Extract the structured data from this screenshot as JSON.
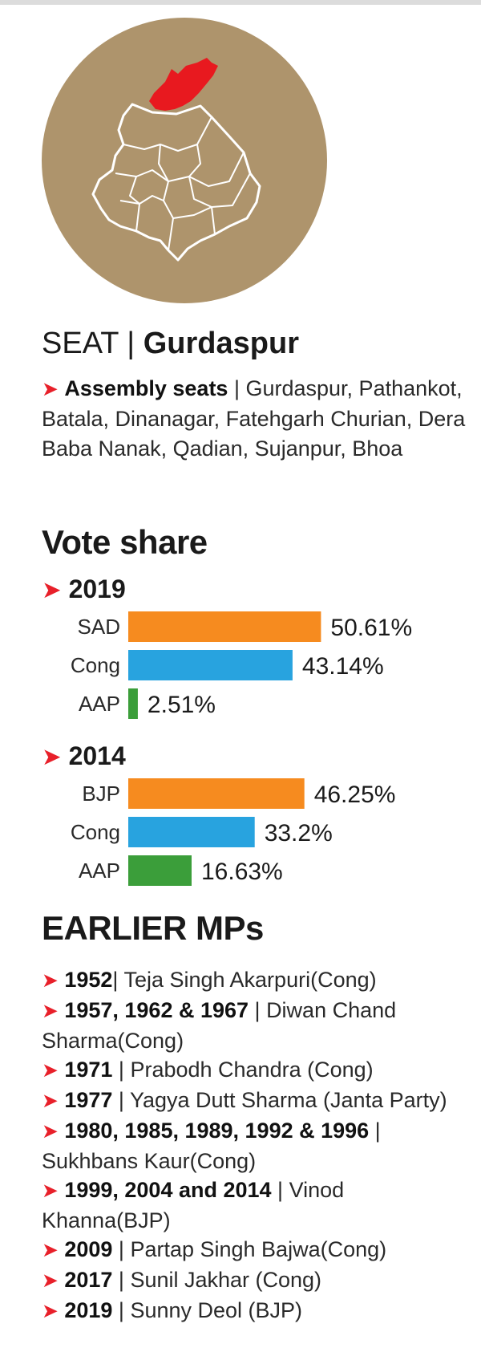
{
  "map": {
    "fill_color": "#ae946c",
    "highlight_color": "#e8191f",
    "outline_color": "#ffffff"
  },
  "seat": {
    "prefix": "SEAT | ",
    "name": "Gurdaspur"
  },
  "assembly": {
    "label": "Assembly seats",
    "separator": " | ",
    "list": "Gurdaspur, Pathankot, Batala, Dinanagar, Fatehgarh Churian, Dera Baba Nanak, Qadian, Sujanpur, Bhoa"
  },
  "vote_share_title": "Vote share",
  "chart_data": [
    {
      "type": "bar",
      "orientation": "horizontal",
      "title": "2019",
      "categories": [
        "SAD",
        "Cong",
        "AAP"
      ],
      "values": [
        50.61,
        43.14,
        2.51
      ],
      "labels": [
        "50.61%",
        "43.14%",
        "2.51%"
      ],
      "colors": [
        "#f68b1f",
        "#28a3df",
        "#3b9e3a"
      ],
      "grid": false
    },
    {
      "type": "bar",
      "orientation": "horizontal",
      "title": "2014",
      "categories": [
        "BJP",
        "Cong",
        "AAP"
      ],
      "values": [
        46.25,
        33.2,
        16.63
      ],
      "labels": [
        "46.25%",
        "33.2%",
        "16.63%"
      ],
      "colors": [
        "#f68b1f",
        "#28a3df",
        "#3b9e3a"
      ],
      "grid": false
    }
  ],
  "earlier_mps_title": "EARLIER MPs",
  "earlier_mps": [
    {
      "years": "1952",
      "sep": "| ",
      "text": "Teja Singh Akarpuri(Cong)"
    },
    {
      "years": "1957, 1962 & 1967",
      "sep": " | ",
      "text": "Diwan Chand Sharma(Cong)"
    },
    {
      "years": "1971",
      "sep": " | ",
      "text": "Prabodh Chandra (Cong)"
    },
    {
      "years": "1977",
      "sep": " | ",
      "text": "Yagya Dutt Sharma (Janta Party)"
    },
    {
      "years": "1980, 1985, 1989, 1992 & 1996",
      "sep": " | ",
      "text": "Sukhbans Kaur(Cong)"
    },
    {
      "years": "1999, 2004 and 2014",
      "sep": " | ",
      "text": "Vinod Khanna(BJP)"
    },
    {
      "years": "2009",
      "sep": " | ",
      "text": "Partap Singh Bajwa(Cong)"
    },
    {
      "years": "2017",
      "sep": " | ",
      "text": "Sunil Jakhar (Cong)"
    },
    {
      "years": "2019",
      "sep": " | ",
      "text": "Sunny Deol (BJP)"
    }
  ]
}
